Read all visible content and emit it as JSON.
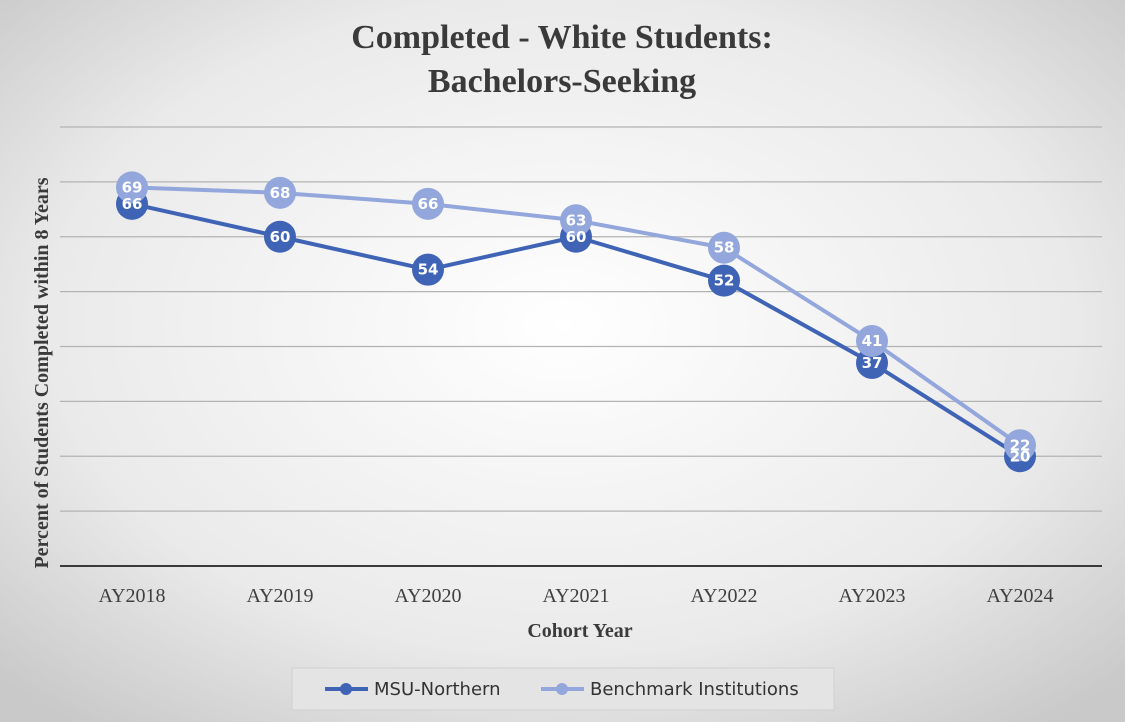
{
  "chart_data": {
    "type": "line",
    "title_lines": [
      "Completed - White Students:",
      "Bachelors-Seeking"
    ],
    "xlabel": "Cohort Year",
    "ylabel": "Percent of Students Completed within 8 Years",
    "categories": [
      "AY2018",
      "AY2019",
      "AY2020",
      "AY2021",
      "AY2022",
      "AY2023",
      "AY2024"
    ],
    "ylim": [
      0,
      80
    ],
    "gridline_step": 10,
    "show_y_tick_labels": false,
    "series": [
      {
        "name": "MSU-Northern",
        "values": [
          66,
          60,
          54,
          60,
          52,
          37,
          20
        ],
        "color": "#3F63B5"
      },
      {
        "name": "Benchmark Institutions",
        "values": [
          69,
          68,
          66,
          63,
          58,
          41,
          22
        ],
        "color": "#93A7DC"
      }
    ],
    "legend_position": "bottom",
    "grid": true
  }
}
